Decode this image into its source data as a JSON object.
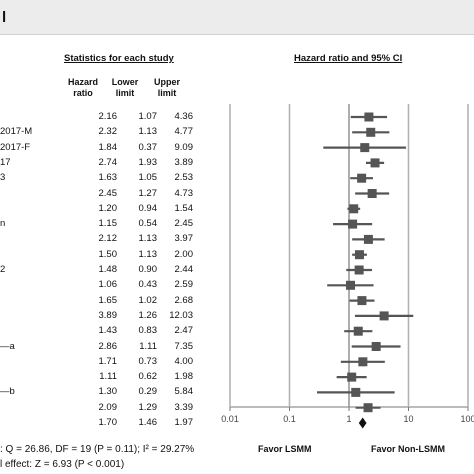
{
  "panel_label": "l",
  "headers": {
    "statistics": "Statistics for each study",
    "forest": "Hazard ratio and 95% CI",
    "col_hr": [
      "Hazard",
      "ratio"
    ],
    "col_lower": [
      "Lower",
      "limit"
    ],
    "col_upper": [
      "Upper",
      "limit"
    ]
  },
  "row_labels": [
    {
      "row": 1,
      "text": "2017-M"
    },
    {
      "row": 2,
      "text": "2017-F"
    },
    {
      "row": 3,
      "text": "17"
    },
    {
      "row": 4,
      "text": "3"
    },
    {
      "row": 7,
      "text": "n"
    },
    {
      "row": 10,
      "text": "2"
    },
    {
      "row": 15,
      "text": "—a"
    },
    {
      "row": 18,
      "text": "—b"
    }
  ],
  "footer": {
    "heterogeneity": ": Q = 26.86, DF = 19 (P = 0.11); I² = 29.27%",
    "overall": "l effect: Z = 6.93 (P < 0.001)"
  },
  "favor_left": "Favor LSMM",
  "favor_right": "Favor Non-LSMM",
  "colors": {
    "marker": "#555555",
    "grid": "#b3b3b3",
    "axis": "#777777",
    "title_bg": "#ececec"
  },
  "chart_data": {
    "type": "forest",
    "x_scale": "log",
    "xlim": [
      0.01,
      100
    ],
    "x_ticks": [
      "0.01",
      "0.1",
      "1",
      "10",
      "100"
    ],
    "reference_line": 1,
    "title": "Hazard ratio and 95% CI",
    "rows": [
      {
        "hr": 2.16,
        "lower": 1.07,
        "upper": 4.36
      },
      {
        "hr": 2.32,
        "lower": 1.13,
        "upper": 4.77
      },
      {
        "hr": 1.84,
        "lower": 0.37,
        "upper": 9.09
      },
      {
        "hr": 2.74,
        "lower": 1.93,
        "upper": 3.89
      },
      {
        "hr": 1.63,
        "lower": 1.05,
        "upper": 2.53
      },
      {
        "hr": 2.45,
        "lower": 1.27,
        "upper": 4.73
      },
      {
        "hr": 1.2,
        "lower": 0.94,
        "upper": 1.54
      },
      {
        "hr": 1.15,
        "lower": 0.54,
        "upper": 2.45
      },
      {
        "hr": 2.12,
        "lower": 1.13,
        "upper": 3.97
      },
      {
        "hr": 1.5,
        "lower": 1.13,
        "upper": 2.0
      },
      {
        "hr": 1.48,
        "lower": 0.9,
        "upper": 2.44
      },
      {
        "hr": 1.06,
        "lower": 0.43,
        "upper": 2.59
      },
      {
        "hr": 1.65,
        "lower": 1.02,
        "upper": 2.68
      },
      {
        "hr": 3.89,
        "lower": 1.26,
        "upper": 12.03
      },
      {
        "hr": 1.43,
        "lower": 0.83,
        "upper": 2.47
      },
      {
        "hr": 2.86,
        "lower": 1.11,
        "upper": 7.35
      },
      {
        "hr": 1.71,
        "lower": 0.73,
        "upper": 4.0
      },
      {
        "hr": 1.11,
        "lower": 0.62,
        "upper": 1.98
      },
      {
        "hr": 1.3,
        "lower": 0.29,
        "upper": 5.84
      },
      {
        "hr": 2.09,
        "lower": 1.29,
        "upper": 3.39
      }
    ],
    "pooled": {
      "hr": 1.7,
      "lower": 1.46,
      "upper": 1.97
    }
  }
}
